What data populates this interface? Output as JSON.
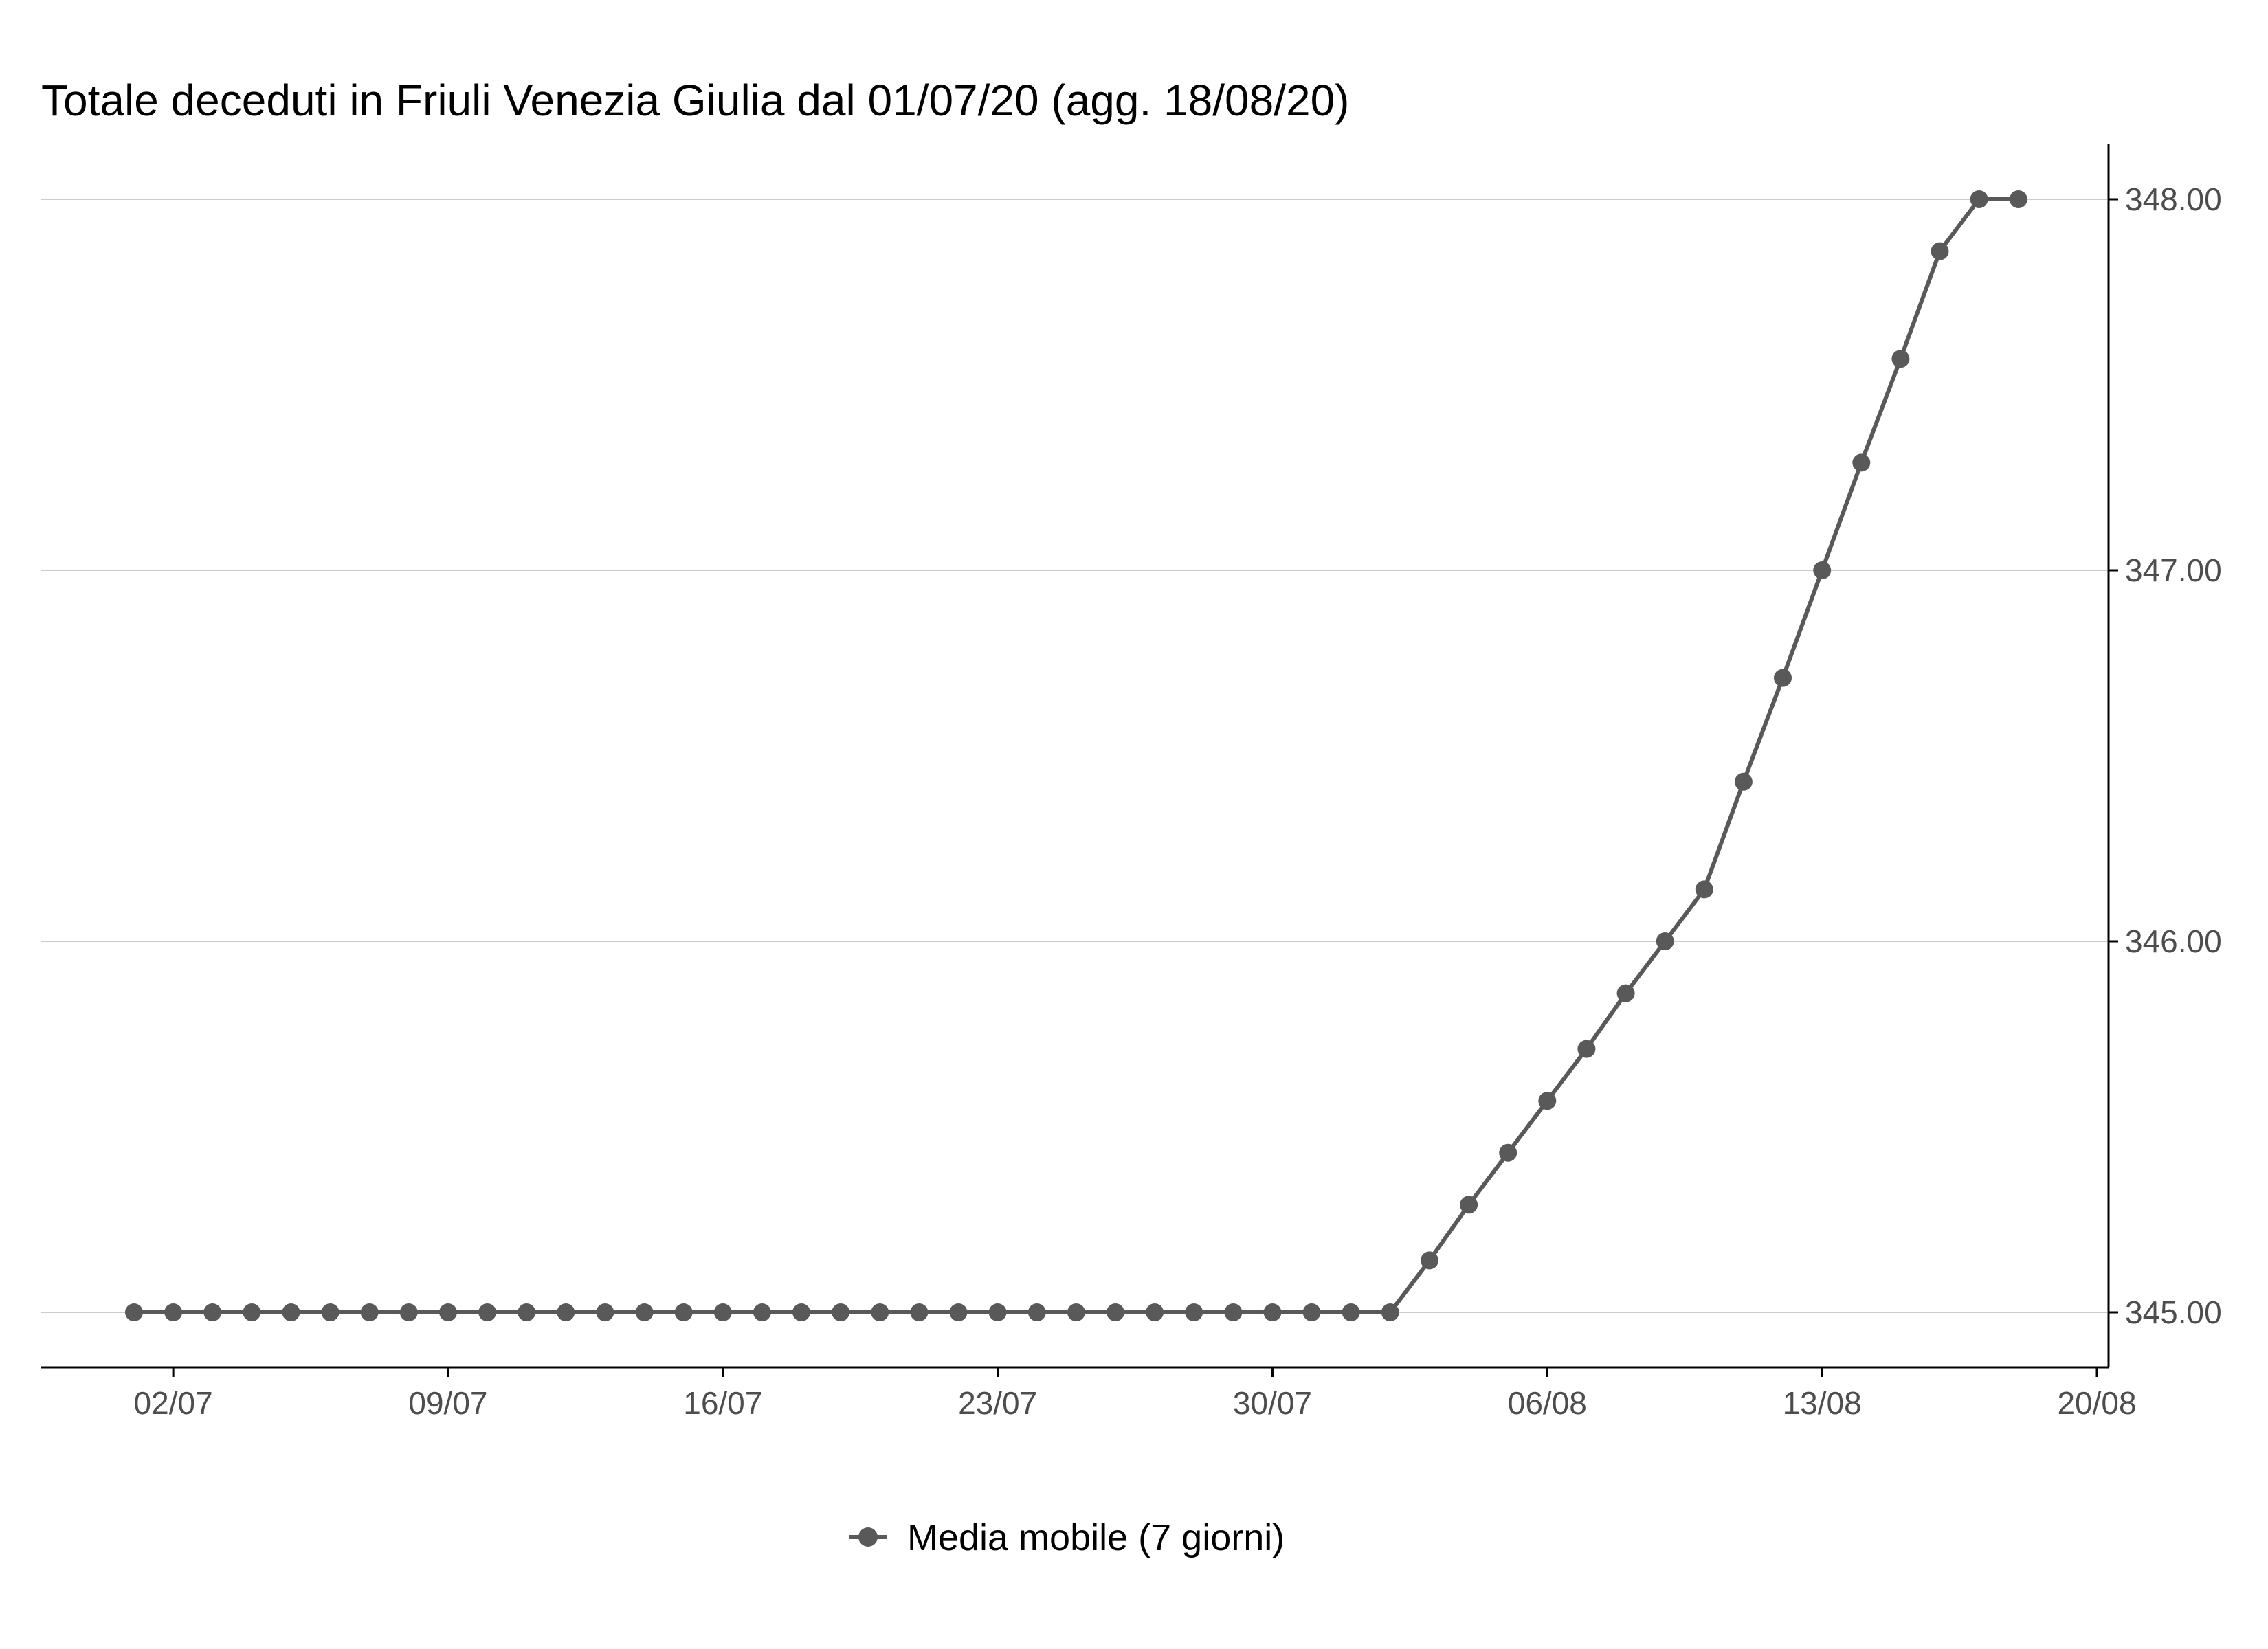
{
  "chart_data": {
    "type": "line",
    "title": "Totale deceduti in Friuli Venezia Giulia dal 01/07/20 (agg. 18/08/20)",
    "xlabel": "",
    "ylabel": "",
    "x": [
      "01/07",
      "02/07",
      "03/07",
      "04/07",
      "05/07",
      "06/07",
      "07/07",
      "08/07",
      "09/07",
      "10/07",
      "11/07",
      "12/07",
      "13/07",
      "14/07",
      "15/07",
      "16/07",
      "17/07",
      "18/07",
      "19/07",
      "20/07",
      "21/07",
      "22/07",
      "23/07",
      "24/07",
      "25/07",
      "26/07",
      "27/07",
      "28/07",
      "29/07",
      "30/07",
      "31/07",
      "01/08",
      "02/08",
      "03/08",
      "04/08",
      "05/08",
      "06/08",
      "07/08",
      "08/08",
      "09/08",
      "10/08",
      "11/08",
      "12/08",
      "13/08",
      "14/08",
      "15/08",
      "16/08",
      "17/08",
      "18/08"
    ],
    "x_tick_labels": [
      "02/07",
      "09/07",
      "16/07",
      "23/07",
      "30/07",
      "06/08",
      "13/08",
      "20/08"
    ],
    "y_tick_labels": [
      "345.00",
      "346.00",
      "347.00",
      "348.00"
    ],
    "ylim": [
      344.86,
      348.14
    ],
    "y_axis_position": "right",
    "grid": "horizontal major",
    "legend_position": "bottom",
    "series": [
      {
        "name": "Media mobile (7 giorni)",
        "color": "#595959",
        "values": [
          345,
          345,
          345,
          345,
          345,
          345,
          345,
          345,
          345,
          345,
          345,
          345,
          345,
          345,
          345,
          345,
          345,
          345,
          345,
          345,
          345,
          345,
          345,
          345,
          345,
          345,
          345,
          345,
          345,
          345,
          345,
          345,
          345,
          345.14,
          345.29,
          345.43,
          345.57,
          345.71,
          345.86,
          346.0,
          346.14,
          346.43,
          346.71,
          347.0,
          347.29,
          347.57,
          347.86,
          348.0,
          348.0
        ]
      }
    ]
  }
}
